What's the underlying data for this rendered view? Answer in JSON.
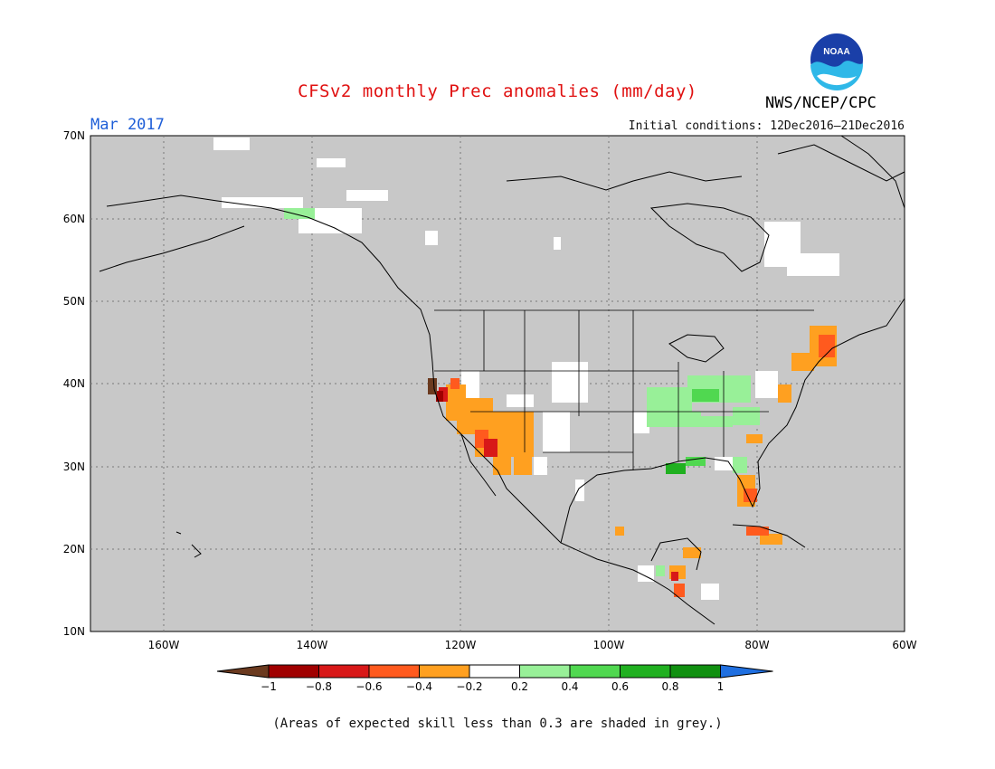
{
  "header": {
    "title": "CFSv2 monthly Prec anomalies (mm/day)",
    "month": "Mar 2017",
    "initial_conditions": "Initial conditions: 12Dec2016–21Dec2016",
    "agency": "NWS/NCEP/CPC",
    "logo_text": "NOAA"
  },
  "map": {
    "lat_labels": [
      "70N",
      "60N",
      "50N",
      "40N",
      "30N",
      "20N",
      "10N"
    ],
    "lon_labels": [
      "160W",
      "140W",
      "120W",
      "100W",
      "80W",
      "60W"
    ],
    "background_color": "#c8c8c8"
  },
  "colorbar": {
    "labels": [
      "−1",
      "−0.8",
      "−0.6",
      "−0.4",
      "−0.2",
      "0.2",
      "0.4",
      "0.6",
      "0.8",
      "1"
    ],
    "colors": [
      "#6b3a1f",
      "#a00000",
      "#d81818",
      "#ff5a1e",
      "#ffa020",
      "#ffffff",
      "#98f098",
      "#50d850",
      "#20b020",
      "#109010",
      "#1f6fe0"
    ]
  },
  "footnote": "(Areas of expected skill less than 0.3 are shaded in grey.)"
}
